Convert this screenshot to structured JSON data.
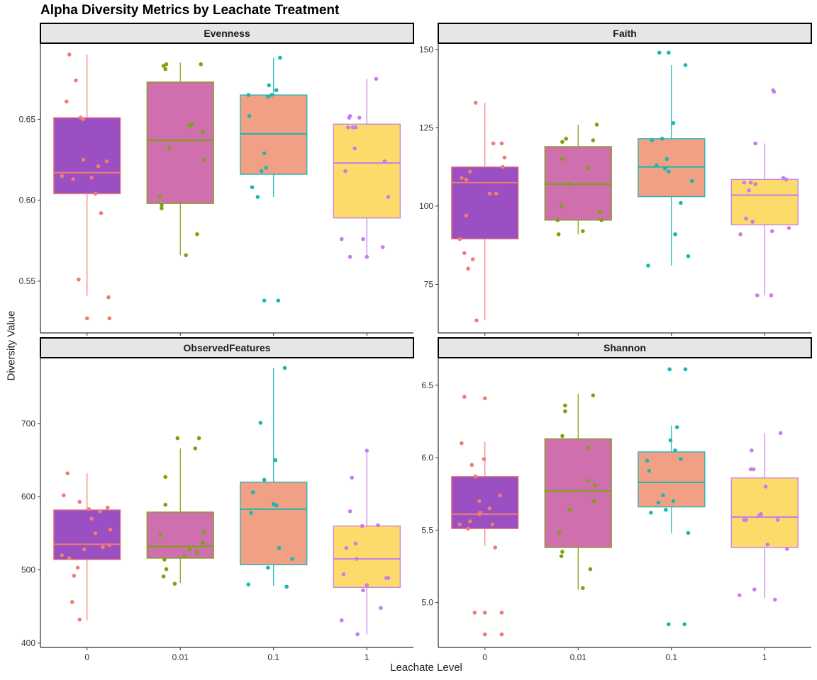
{
  "title": "Alpha Diversity Metrics by Leachate Treatment",
  "ylabel": "Diversity Value",
  "xlabel": "Leachate Level",
  "colors": {
    "fills": [
      "#9a4fc2",
      "#cf6fad",
      "#f2a085",
      "#fcdb6a"
    ],
    "lines": [
      "#f07c72",
      "#7ca30e",
      "#19b7b2",
      "#c67ee8"
    ],
    "strip_bg": "#e6e6e6",
    "axis": "#000000"
  },
  "chart_data": [
    {
      "type": "box",
      "title": "Evenness",
      "categories": [
        "0",
        "0.01",
        "0.1",
        "1"
      ],
      "ylim": [
        0.518,
        0.697
      ],
      "yticks": [
        0.55,
        0.6,
        0.65
      ],
      "ytick_labels": [
        "0.55",
        "0.60",
        "0.65"
      ],
      "boxes": [
        {
          "q1": 0.604,
          "median": 0.617,
          "q3": 0.651,
          "lo": 0.541,
          "hi": 0.69
        },
        {
          "q1": 0.598,
          "median": 0.637,
          "q3": 0.673,
          "lo": 0.566,
          "hi": 0.685
        },
        {
          "q1": 0.616,
          "median": 0.641,
          "q3": 0.665,
          "lo": 0.602,
          "hi": 0.688
        },
        {
          "q1": 0.589,
          "median": 0.623,
          "q3": 0.647,
          "lo": 0.565,
          "hi": 0.675
        }
      ],
      "points": [
        [
          [
            -0.27,
            0.615
          ],
          [
            -0.22,
            0.661
          ],
          [
            -0.19,
            0.69
          ],
          [
            -0.15,
            0.613
          ],
          [
            -0.12,
            0.674
          ],
          [
            -0.09,
            0.551
          ],
          [
            -0.07,
            0.651
          ],
          [
            -0.04,
            0.65
          ],
          [
            -0.04,
            0.625
          ],
          [
            0.0,
            0.527
          ],
          [
            0.05,
            0.614
          ],
          [
            0.09,
            0.604
          ],
          [
            0.12,
            0.621
          ],
          [
            0.15,
            0.592
          ],
          [
            0.21,
            0.624
          ],
          [
            0.24,
            0.527
          ],
          [
            0.23,
            0.54
          ]
        ],
        [
          [
            -0.22,
            0.602
          ],
          [
            -0.2,
            0.595
          ],
          [
            -0.2,
            0.597
          ],
          [
            -0.18,
            0.683
          ],
          [
            -0.16,
            0.681
          ],
          [
            -0.15,
            0.684
          ],
          [
            -0.12,
            0.632
          ],
          [
            0.06,
            0.566
          ],
          [
            0.1,
            0.646
          ],
          [
            0.13,
            0.647
          ],
          [
            0.18,
            0.579
          ],
          [
            0.22,
            0.684
          ],
          [
            0.24,
            0.642
          ],
          [
            0.25,
            0.625
          ]
        ],
        [
          [
            -0.27,
            0.665
          ],
          [
            -0.26,
            0.652
          ],
          [
            -0.23,
            0.608
          ],
          [
            -0.17,
            0.602
          ],
          [
            -0.1,
            0.538
          ],
          [
            -0.1,
            0.629
          ],
          [
            -0.08,
            0.62
          ],
          [
            -0.06,
            0.664
          ],
          [
            -0.05,
            0.671
          ],
          [
            -0.02,
            0.665
          ],
          [
            0.03,
            0.668
          ],
          [
            0.05,
            0.538
          ],
          [
            0.07,
            0.688
          ],
          [
            -0.13,
            0.618
          ]
        ],
        [
          [
            -0.27,
            0.576
          ],
          [
            -0.23,
            0.618
          ],
          [
            -0.2,
            0.645
          ],
          [
            -0.19,
            0.651
          ],
          [
            -0.18,
            0.652
          ],
          [
            -0.15,
            0.645
          ],
          [
            -0.13,
            0.632
          ],
          [
            -0.12,
            0.645
          ],
          [
            -0.08,
            0.651
          ],
          [
            -0.04,
            0.576
          ],
          [
            0.0,
            0.565
          ],
          [
            0.1,
            0.675
          ],
          [
            0.17,
            0.571
          ],
          [
            0.19,
            0.624
          ],
          [
            0.23,
            0.602
          ],
          [
            -0.18,
            0.565
          ]
        ]
      ]
    },
    {
      "type": "box",
      "title": "Faith",
      "categories": [
        "0",
        "0.01",
        "0.1",
        "1"
      ],
      "ylim": [
        59.5,
        152
      ],
      "yticks": [
        75,
        100,
        125,
        150
      ],
      "ytick_labels": [
        "75",
        "100",
        "125",
        "150"
      ],
      "boxes": [
        {
          "q1": 89.5,
          "median": 107.5,
          "q3": 112.5,
          "lo": 63.5,
          "hi": 133
        },
        {
          "q1": 95.5,
          "median": 107,
          "q3": 119,
          "lo": 91,
          "hi": 126
        },
        {
          "q1": 103,
          "median": 112.5,
          "q3": 121.5,
          "lo": 81,
          "hi": 145
        },
        {
          "q1": 94,
          "median": 103.5,
          "q3": 108.5,
          "lo": 71.5,
          "hi": 120
        }
      ],
      "points": [
        [
          [
            -0.27,
            89.5
          ],
          [
            -0.25,
            109
          ],
          [
            -0.22,
            85
          ],
          [
            -0.2,
            97
          ],
          [
            -0.18,
            80
          ],
          [
            -0.16,
            111
          ],
          [
            -0.13,
            83
          ],
          [
            -0.1,
            133
          ],
          [
            -0.09,
            63.5
          ],
          [
            0.05,
            104
          ],
          [
            0.09,
            120
          ],
          [
            0.12,
            104
          ],
          [
            0.18,
            120
          ],
          [
            0.19,
            112.5
          ],
          [
            0.21,
            115.5
          ],
          [
            -0.2,
            108.5
          ]
        ],
        [
          [
            -0.22,
            95.5
          ],
          [
            -0.21,
            91
          ],
          [
            -0.18,
            100
          ],
          [
            -0.17,
            115
          ],
          [
            -0.17,
            120.5
          ],
          [
            -0.13,
            121.5
          ],
          [
            -0.1,
            107
          ],
          [
            0.05,
            92
          ],
          [
            0.1,
            112
          ],
          [
            0.16,
            121
          ],
          [
            0.2,
            126
          ],
          [
            0.23,
            98
          ],
          [
            0.25,
            95.5
          ]
        ],
        [
          [
            -0.25,
            81
          ],
          [
            -0.21,
            121
          ],
          [
            -0.16,
            113
          ],
          [
            -0.13,
            149
          ],
          [
            -0.1,
            121.5
          ],
          [
            -0.07,
            112
          ],
          [
            -0.05,
            115
          ],
          [
            -0.03,
            111
          ],
          [
            -0.03,
            149
          ],
          [
            0.02,
            126.5
          ],
          [
            0.04,
            91
          ],
          [
            0.1,
            101
          ],
          [
            0.15,
            145
          ],
          [
            0.18,
            84
          ],
          [
            0.22,
            108
          ]
        ],
        [
          [
            -0.26,
            91
          ],
          [
            -0.22,
            107.5
          ],
          [
            -0.2,
            96
          ],
          [
            -0.17,
            105
          ],
          [
            -0.15,
            107.5
          ],
          [
            -0.13,
            95
          ],
          [
            -0.1,
            120
          ],
          [
            -0.1,
            107
          ],
          [
            -0.08,
            71.5
          ],
          [
            0.07,
            71.5
          ],
          [
            0.08,
            92
          ],
          [
            0.09,
            137
          ],
          [
            0.1,
            136.5
          ],
          [
            0.2,
            109
          ],
          [
            0.23,
            108.5
          ],
          [
            0.26,
            93
          ]
        ]
      ]
    },
    {
      "type": "box",
      "title": "ObservedFeatures",
      "categories": [
        "0",
        "0.01",
        "0.1",
        "1"
      ],
      "ylim": [
        394,
        790
      ],
      "yticks": [
        400,
        500,
        600,
        700
      ],
      "ytick_labels": [
        "400",
        "500",
        "600",
        "700"
      ],
      "boxes": [
        {
          "q1": 514,
          "median": 535,
          "q3": 582,
          "lo": 431,
          "hi": 632
        },
        {
          "q1": 516,
          "median": 532,
          "q3": 579,
          "lo": 482,
          "hi": 666
        },
        {
          "q1": 507,
          "median": 583,
          "q3": 620,
          "lo": 478,
          "hi": 776
        },
        {
          "q1": 476,
          "median": 515,
          "q3": 560,
          "lo": 412,
          "hi": 663
        }
      ],
      "points": [
        [
          [
            -0.27,
            520
          ],
          [
            -0.25,
            602
          ],
          [
            -0.21,
            632
          ],
          [
            -0.19,
            516
          ],
          [
            -0.16,
            456
          ],
          [
            -0.14,
            492
          ],
          [
            -0.1,
            503
          ],
          [
            -0.08,
            432
          ],
          [
            -0.08,
            593
          ],
          [
            -0.03,
            528
          ],
          [
            0.02,
            583
          ],
          [
            0.05,
            570
          ],
          [
            0.09,
            550
          ],
          [
            0.14,
            580
          ],
          [
            0.17,
            531
          ],
          [
            0.22,
            585
          ],
          [
            0.24,
            534
          ],
          [
            0.25,
            555
          ]
        ],
        [
          [
            -0.21,
            548
          ],
          [
            -0.18,
            491
          ],
          [
            -0.17,
            514
          ],
          [
            -0.16,
            627
          ],
          [
            -0.16,
            589
          ],
          [
            -0.15,
            501
          ],
          [
            -0.06,
            481
          ],
          [
            -0.03,
            680
          ],
          [
            0.05,
            518
          ],
          [
            0.1,
            528
          ],
          [
            0.16,
            666
          ],
          [
            0.18,
            524
          ],
          [
            0.2,
            680
          ],
          [
            0.24,
            537
          ],
          [
            0.25,
            552
          ]
        ],
        [
          [
            -0.27,
            480
          ],
          [
            -0.24,
            578
          ],
          [
            -0.22,
            606
          ],
          [
            -0.14,
            701
          ],
          [
            -0.1,
            623
          ],
          [
            -0.06,
            503
          ],
          [
            0.0,
            590
          ],
          [
            0.02,
            650
          ],
          [
            0.06,
            530
          ],
          [
            0.12,
            776
          ],
          [
            0.14,
            477
          ],
          [
            0.2,
            515
          ],
          [
            0.03,
            588
          ]
        ],
        [
          [
            -0.27,
            431
          ],
          [
            -0.25,
            494
          ],
          [
            -0.22,
            530
          ],
          [
            -0.18,
            580
          ],
          [
            -0.16,
            626
          ],
          [
            -0.12,
            536
          ],
          [
            -0.11,
            515
          ],
          [
            -0.1,
            412
          ],
          [
            -0.05,
            560
          ],
          [
            -0.04,
            472
          ],
          [
            0.0,
            479
          ],
          [
            0.0,
            663
          ],
          [
            0.12,
            561
          ],
          [
            0.15,
            448
          ],
          [
            0.21,
            489
          ],
          [
            0.23,
            489
          ]
        ]
      ]
    },
    {
      "type": "box",
      "title": "Shannon",
      "categories": [
        "0",
        "0.01",
        "0.1",
        "1"
      ],
      "ylim": [
        4.69,
        6.69
      ],
      "yticks": [
        5.0,
        5.5,
        6.0,
        6.5
      ],
      "ytick_labels": [
        "5.0",
        "5.5",
        "6.0",
        "6.5"
      ],
      "boxes": [
        {
          "q1": 5.51,
          "median": 5.61,
          "q3": 5.87,
          "lo": 5.39,
          "hi": 6.11
        },
        {
          "q1": 5.38,
          "median": 5.77,
          "q3": 6.13,
          "lo": 5.09,
          "hi": 6.44
        },
        {
          "q1": 5.66,
          "median": 5.83,
          "q3": 6.04,
          "lo": 5.48,
          "hi": 6.22
        },
        {
          "q1": 5.38,
          "median": 5.59,
          "q3": 5.86,
          "lo": 5.03,
          "hi": 6.17
        }
      ],
      "points": [
        [
          [
            -0.27,
            5.54
          ],
          [
            -0.25,
            6.1
          ],
          [
            -0.22,
            6.42
          ],
          [
            -0.18,
            5.51
          ],
          [
            -0.16,
            5.56
          ],
          [
            -0.14,
            5.95
          ],
          [
            -0.11,
            4.93
          ],
          [
            -0.1,
            5.87
          ],
          [
            -0.06,
            5.7
          ],
          [
            -0.05,
            5.62
          ],
          [
            -0.01,
            5.99
          ],
          [
            0.0,
            4.78
          ],
          [
            0.0,
            6.41
          ],
          [
            0.0,
            4.93
          ],
          [
            0.05,
            5.65
          ],
          [
            0.08,
            5.54
          ],
          [
            0.11,
            5.38
          ],
          [
            0.16,
            5.74
          ],
          [
            0.18,
            4.78
          ],
          [
            0.18,
            4.93
          ],
          [
            -0.06,
            5.61
          ]
        ],
        [
          [
            -0.2,
            5.48
          ],
          [
            -0.18,
            5.32
          ],
          [
            -0.17,
            5.35
          ],
          [
            -0.17,
            6.15
          ],
          [
            -0.14,
            6.36
          ],
          [
            -0.14,
            6.32
          ],
          [
            -0.09,
            5.64
          ],
          [
            0.05,
            5.1
          ],
          [
            0.1,
            5.84
          ],
          [
            0.11,
            6.07
          ],
          [
            0.13,
            5.23
          ],
          [
            0.16,
            6.43
          ],
          [
            0.17,
            5.7
          ],
          [
            0.18,
            5.81
          ]
        ],
        [
          [
            -0.26,
            5.98
          ],
          [
            -0.24,
            5.91
          ],
          [
            -0.22,
            5.62
          ],
          [
            -0.14,
            5.69
          ],
          [
            -0.09,
            5.74
          ],
          [
            -0.06,
            5.64
          ],
          [
            -0.03,
            4.85
          ],
          [
            -0.02,
            6.61
          ],
          [
            -0.01,
            6.12
          ],
          [
            0.02,
            5.7
          ],
          [
            0.04,
            6.05
          ],
          [
            0.06,
            6.21
          ],
          [
            0.1,
            5.99
          ],
          [
            0.14,
            4.85
          ],
          [
            0.15,
            6.61
          ],
          [
            0.18,
            5.48
          ]
        ],
        [
          [
            -0.27,
            5.05
          ],
          [
            -0.22,
            5.57
          ],
          [
            -0.2,
            5.57
          ],
          [
            -0.15,
            5.92
          ],
          [
            -0.14,
            6.05
          ],
          [
            -0.12,
            5.92
          ],
          [
            -0.11,
            5.09
          ],
          [
            -0.06,
            5.6
          ],
          [
            -0.05,
            5.6
          ],
          [
            -0.04,
            5.61
          ],
          [
            0.01,
            5.8
          ],
          [
            0.03,
            5.4
          ],
          [
            0.11,
            5.02
          ],
          [
            0.14,
            5.57
          ],
          [
            0.17,
            6.17
          ],
          [
            0.24,
            5.37
          ]
        ]
      ]
    }
  ]
}
